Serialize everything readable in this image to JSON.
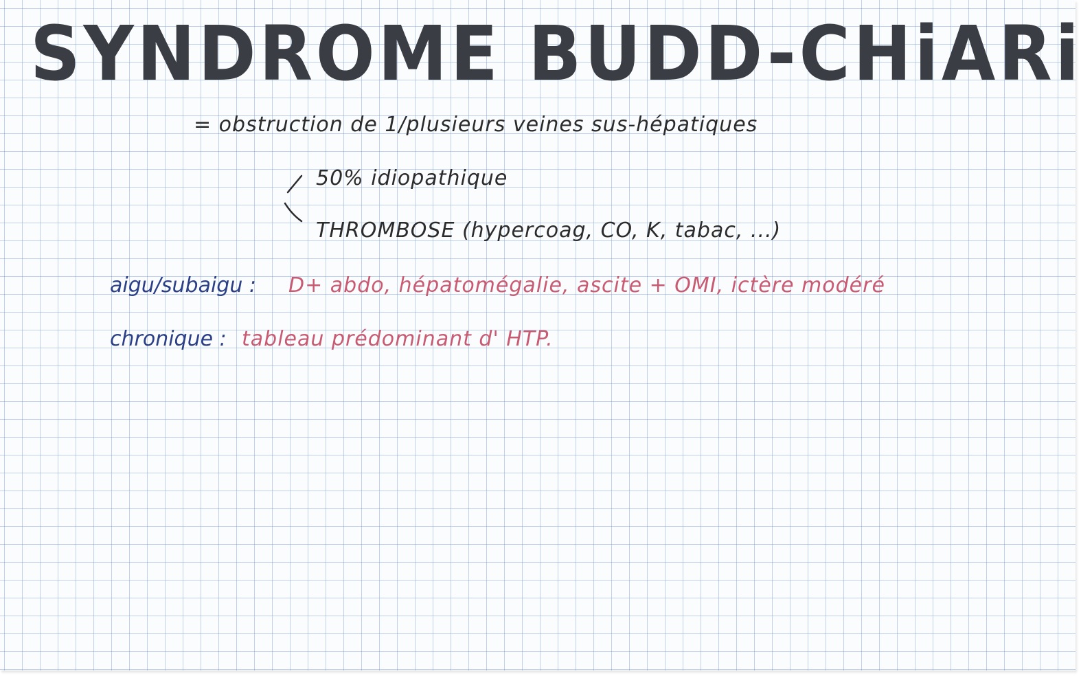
{
  "title": "SYNDROME BUDD-CHiARi",
  "definition": "= obstruction de 1/plusieurs veines sus-hépatiques",
  "causes": [
    "50% idiopathique",
    "THROMBOSE (hypercoag, CO, K, tabac, ...)"
  ],
  "acute": {
    "label": "aigu/subaigu :",
    "text": "D+ abdo, hépatomégalie, ascite + OMI, ictère modéré"
  },
  "chronic": {
    "label": "chronique :",
    "text": "tableau prédominant d' HTP."
  },
  "colors": {
    "title_ink": "#3b3d44",
    "black_ink": "#2b2b2b",
    "blue_ink": "#2a3f86",
    "red_ink": "#c85b72",
    "grid": "#78a0d2"
  }
}
